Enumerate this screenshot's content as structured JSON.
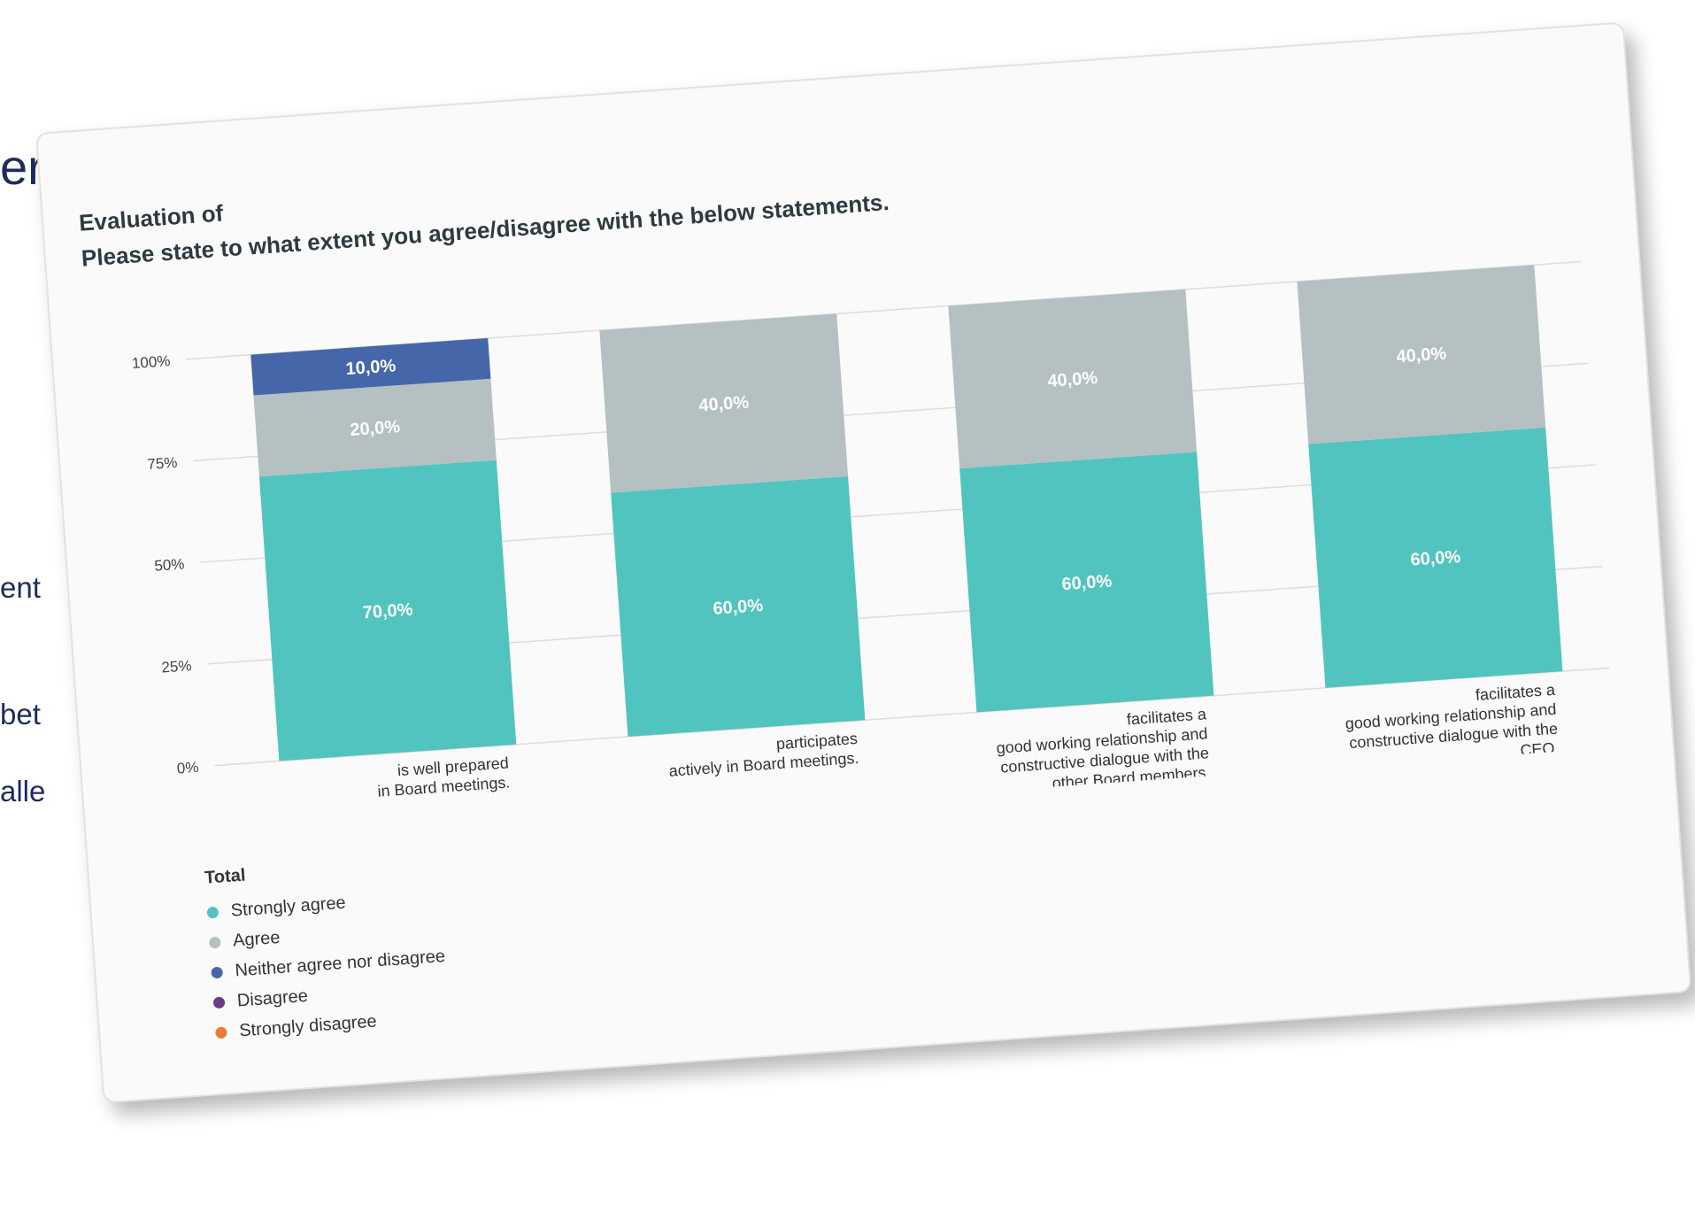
{
  "background": {
    "heading": "er",
    "fragments": [
      "ent",
      "bet",
      "alle"
    ]
  },
  "card": {
    "title_line1": "Evaluation of",
    "title_line2": "Please state to what extent you agree/disagree with the below statements."
  },
  "chart_data": {
    "type": "bar",
    "stacked": true,
    "y_ticks": [
      "100%",
      "75%",
      "50%",
      "25%",
      "0%"
    ],
    "ylim": [
      0,
      100
    ],
    "grid": true,
    "categories": [
      [
        "is well prepared",
        "in Board meetings."
      ],
      [
        "participates",
        "actively in Board meetings."
      ],
      [
        "facilitates a",
        "good working relationship and",
        "constructive dialogue with the",
        "other Board members."
      ],
      [
        "facilitates a",
        "good working relationship and",
        "constructive dialogue with the",
        "CEO."
      ]
    ],
    "series": [
      {
        "name": "Strongly agree",
        "color": "#52c4bf",
        "values": [
          70,
          60,
          60,
          60
        ],
        "labels": [
          "70,0%",
          "60,0%",
          "60,0%",
          "60,0%"
        ]
      },
      {
        "name": "Agree",
        "color": "#b4c0c2",
        "values": [
          20,
          40,
          40,
          40
        ],
        "labels": [
          "20,0%",
          "40,0%",
          "40,0%",
          "40,0%"
        ]
      },
      {
        "name": "Neither agree nor disagree",
        "color": "#4566a8",
        "values": [
          10,
          0,
          0,
          0
        ],
        "labels": [
          "10,0%",
          "",
          "",
          ""
        ]
      },
      {
        "name": "Disagree",
        "color": "#6a3d86",
        "values": [
          0,
          0,
          0,
          0
        ],
        "labels": [
          "",
          "",
          "",
          ""
        ]
      },
      {
        "name": "Strongly disagree",
        "color": "#ec7b3a",
        "values": [
          0,
          0,
          0,
          0
        ],
        "labels": [
          "",
          "",
          "",
          ""
        ]
      }
    ],
    "legend": {
      "title": "Total",
      "position": "bottom-left"
    }
  }
}
